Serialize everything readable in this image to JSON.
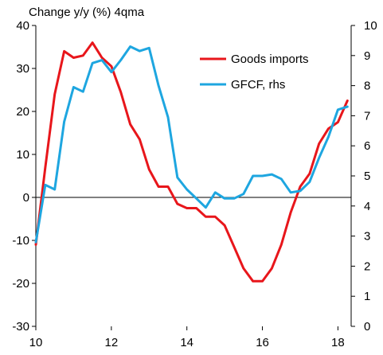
{
  "chart_data": {
    "type": "line",
    "title": "Change y/y (%) 4qma",
    "xlabel": "",
    "ylabel": "",
    "x_ticks": [
      "10",
      "12",
      "14",
      "16",
      "18"
    ],
    "xlim": [
      2010,
      2018.35
    ],
    "ylim_left": [
      -30,
      40
    ],
    "ylim_right": [
      0,
      10
    ],
    "y_ticks_left": [
      40,
      30,
      20,
      10,
      0,
      -10,
      -20,
      -30
    ],
    "y_ticks_right": [
      10,
      9,
      8,
      7,
      6,
      5,
      4,
      3,
      2,
      1,
      0
    ],
    "grid": false,
    "legend_position": "top-right",
    "colors": {
      "goods": "#e8161b",
      "gfcf": "#1ea6e0",
      "axis": "#000000"
    },
    "series": [
      {
        "name": "Goods imports",
        "axis": "left",
        "color": "#e8161b",
        "x": [
          2010.0,
          2010.25,
          2010.5,
          2010.75,
          2011.0,
          2011.25,
          2011.5,
          2011.75,
          2012.0,
          2012.25,
          2012.5,
          2012.75,
          2013.0,
          2013.25,
          2013.5,
          2013.75,
          2014.0,
          2014.25,
          2014.5,
          2014.75,
          2015.0,
          2015.25,
          2015.5,
          2015.75,
          2016.0,
          2016.25,
          2016.5,
          2016.75,
          2017.0,
          2017.25,
          2017.5,
          2017.75,
          2018.0,
          2018.25
        ],
        "y": [
          -11,
          7,
          24,
          34,
          32.5,
          33,
          36,
          32.5,
          30.5,
          24.5,
          17,
          13.5,
          6.5,
          2.5,
          2.5,
          -1.5,
          -2.5,
          -2.5,
          -4.5,
          -4.5,
          -6.5,
          -11.5,
          -16.5,
          -19.5,
          -19.5,
          -16.5,
          -11,
          -3.5,
          2.5,
          5.5,
          12.5,
          16,
          17.5,
          22.5
        ]
      },
      {
        "name": "GFCF, rhs",
        "axis": "right",
        "color": "#1ea6e0",
        "x": [
          2010.0,
          2010.25,
          2010.5,
          2010.75,
          2011.0,
          2011.25,
          2011.5,
          2011.75,
          2012.0,
          2012.25,
          2012.5,
          2012.75,
          2013.0,
          2013.25,
          2013.5,
          2013.75,
          2014.0,
          2014.25,
          2014.5,
          2014.75,
          2015.0,
          2015.25,
          2015.5,
          2015.75,
          2016.0,
          2016.25,
          2016.5,
          2016.75,
          2017.0,
          2017.25,
          2017.5,
          2017.75,
          2018.0,
          2018.25
        ],
        "y": [
          2.8,
          4.7,
          4.55,
          6.8,
          7.95,
          7.8,
          8.75,
          8.85,
          8.45,
          8.85,
          9.3,
          9.15,
          9.25,
          8.0,
          6.95,
          4.95,
          4.55,
          4.25,
          3.95,
          4.45,
          4.25,
          4.25,
          4.4,
          5.0,
          5.0,
          5.05,
          4.9,
          4.45,
          4.5,
          4.8,
          5.6,
          6.3,
          7.2,
          7.3
        ]
      }
    ]
  }
}
